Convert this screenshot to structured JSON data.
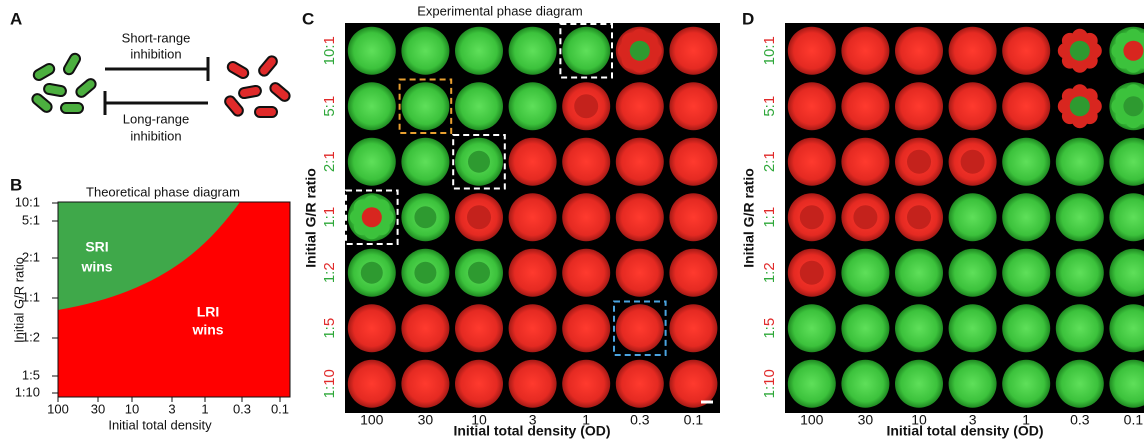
{
  "panel_a": {
    "label": "A",
    "top_arrow": [
      "Short-range",
      "inhibition"
    ],
    "bottom_arrow": [
      "Long-range",
      "inhibition"
    ]
  },
  "panel_b": {
    "label": "B",
    "title": "Theoretical phase diagram",
    "y_label": "Initial G/R ratio",
    "x_label": "Initial total density",
    "y_ticks": [
      "10:1",
      "5:1",
      "2:1",
      "1:1",
      "1:2",
      "1:5",
      "1:10"
    ],
    "x_ticks": [
      "100",
      "30",
      "10",
      "3",
      "1",
      "0.3",
      "0.1"
    ],
    "green_region": [
      "SRI",
      "wins"
    ],
    "red_region": [
      "LRI",
      "wins"
    ]
  },
  "panel_c": {
    "label": "C",
    "title": "Experimental phase diagram",
    "y_label": "Initial G/R ratio",
    "x_label": "Initial total density (OD)",
    "rows": [
      "10:1",
      "5:1",
      "2:1",
      "1:1",
      "1:2",
      "1:5",
      "1:10"
    ],
    "columns": [
      "100",
      "30",
      "10",
      "3",
      "1",
      "0.3",
      "0.1"
    ]
  },
  "panel_d": {
    "label": "D",
    "y_label": "Initial G/R ratio",
    "x_label": "Initial total density (OD)",
    "rows": [
      "10:1",
      "5:1",
      "2:1",
      "1:1",
      "1:2",
      "1:5",
      "1:10"
    ],
    "columns": [
      "100",
      "30",
      "10",
      "3",
      "1",
      "0.3",
      "0.1"
    ]
  }
}
